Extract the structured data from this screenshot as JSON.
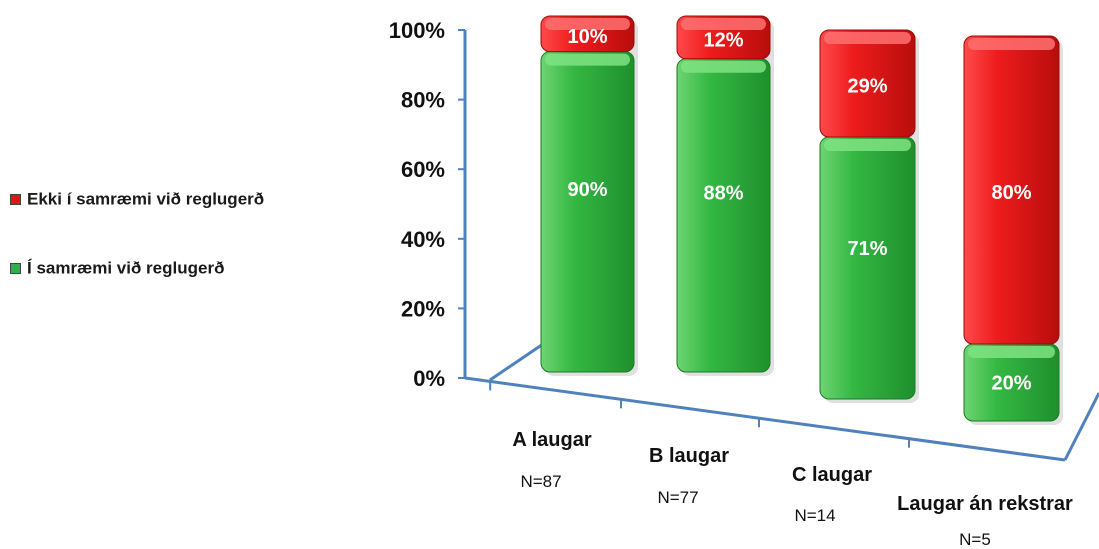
{
  "chart_data": {
    "type": "bar",
    "stacked": true,
    "percent": true,
    "title": "",
    "xlabel": "",
    "ylabel": "",
    "ylim": [
      0,
      100
    ],
    "yticks": [
      "0%",
      "20%",
      "40%",
      "60%",
      "80%",
      "100%"
    ],
    "categories": [
      "A laugar",
      "B laugar",
      "C laugar",
      "Laugar án rekstrar"
    ],
    "category_notes": [
      "N=87",
      "N=77",
      "N=14",
      "N=5"
    ],
    "series": [
      {
        "name": "Í samræmi við reglugerð",
        "color": "#2fb044",
        "values": [
          90,
          88,
          71,
          20
        ],
        "labels": [
          "90%",
          "88%",
          "71%",
          "20%"
        ]
      },
      {
        "name": "Ekki í samræmi við reglugerð",
        "color": "#e0141b",
        "values": [
          10,
          12,
          29,
          80
        ],
        "labels": [
          "10%",
          "12%",
          "29%",
          "80%"
        ]
      }
    ],
    "legend_position": "left",
    "grid": false
  },
  "legend": {
    "items": [
      {
        "label": "Ekki í samræmi við reglugerð",
        "color": "#e0141b"
      },
      {
        "label": "Í samræmi við reglugerð",
        "color": "#2fb044"
      }
    ]
  }
}
